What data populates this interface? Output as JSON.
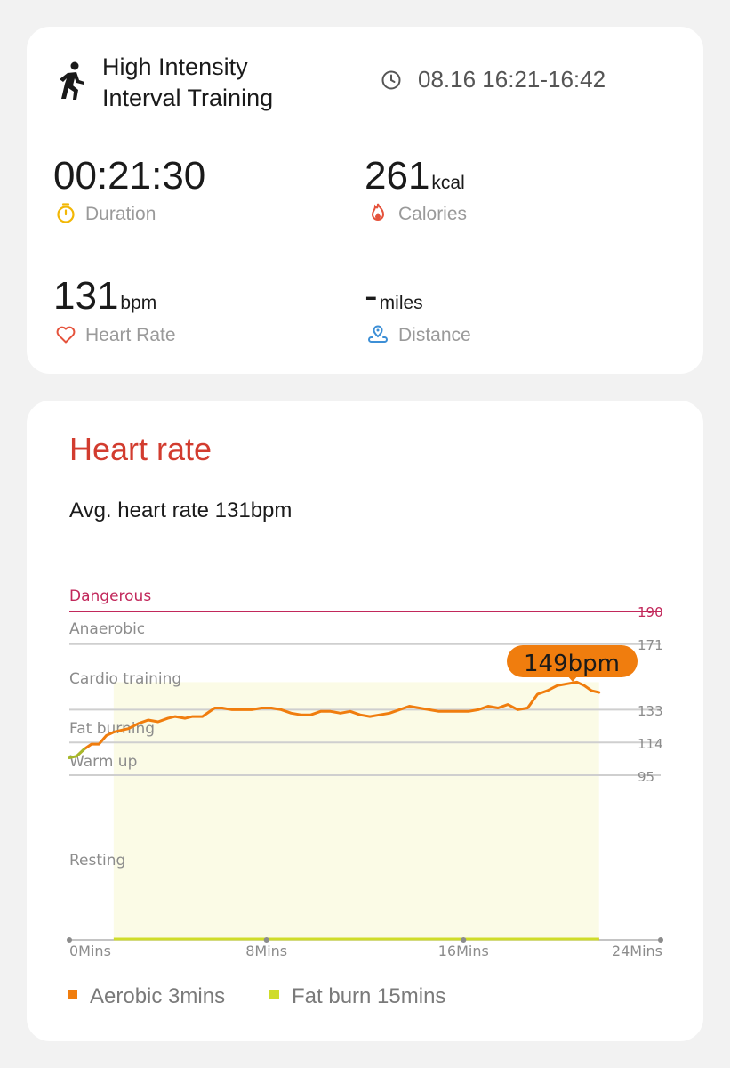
{
  "workout": {
    "title_line1": "High Intensity",
    "title_line2": "Interval Training",
    "time_range": "08.16 16:21-16:42",
    "icon": "running-person-icon"
  },
  "metrics": {
    "duration": {
      "value": "00:21:30",
      "label": "Duration",
      "icon": "stopwatch-icon",
      "color": "#f2b705"
    },
    "calories": {
      "value": "261",
      "unit": "kcal",
      "label": "Calories",
      "icon": "flame-icon",
      "color": "#e5533c"
    },
    "heart_rate": {
      "value": "131",
      "unit": "bpm",
      "label": "Heart Rate",
      "icon": "heart-icon",
      "color": "#e5533c"
    },
    "distance": {
      "value": "-",
      "unit": "miles",
      "label": "Distance",
      "icon": "route-pin-icon",
      "color": "#3d8fd6"
    }
  },
  "heart_rate_section": {
    "title": "Heart rate",
    "avg_text": "Avg. heart rate 131bpm",
    "max_callout": "149bpm"
  },
  "legend": {
    "aerobic": "Aerobic 3mins",
    "fat_burn": "Fat burn 15mins",
    "aerobic_color": "#f07d0e",
    "fat_burn_color": "#cfdc2a"
  },
  "chart_data": {
    "type": "line",
    "x_tick_labels": [
      "0Mins",
      "8Mins",
      "16Mins",
      "24Mins"
    ],
    "xlim": [
      0,
      24
    ],
    "y_ticks": [
      95,
      114,
      133,
      171,
      190
    ],
    "zones": [
      {
        "name": "Dangerous",
        "threshold": 190
      },
      {
        "name": "Anaerobic",
        "threshold": 171
      },
      {
        "name": "Cardio training",
        "threshold": null
      },
      {
        "name": "Fat burning",
        "threshold": 133
      },
      {
        "name": "Warm up",
        "threshold": 114
      },
      {
        "name": "Resting",
        "threshold": 95
      }
    ],
    "series": [
      {
        "x": [
          0,
          0.3,
          0.6,
          0.9,
          1.2,
          1.5,
          1.8,
          2.1,
          2.4,
          2.8,
          3.2,
          3.6,
          4.0,
          4.3,
          4.7,
          5.0,
          5.4,
          5.9,
          6.2,
          6.6,
          7.0,
          7.4,
          7.8,
          8.2,
          8.6,
          9.0,
          9.4,
          9.8,
          10.2,
          10.6,
          11.0,
          11.4,
          11.8,
          12.2,
          12.6,
          13.0,
          13.4,
          13.8,
          14.2,
          14.6,
          15.0,
          15.4,
          15.8,
          16.2,
          16.6,
          17.0,
          17.4,
          17.8,
          18.2,
          18.6,
          19.0,
          19.4,
          19.8,
          20.2,
          20.6,
          20.9,
          21.2,
          21.5
        ],
        "y": [
          105,
          106,
          110,
          113,
          113,
          118,
          120,
          121,
          122,
          125,
          127,
          126,
          128,
          129,
          128,
          129,
          129,
          134,
          134,
          133,
          133,
          133,
          134,
          134,
          133,
          131,
          130,
          130,
          132,
          132,
          131,
          132,
          130,
          129,
          130,
          131,
          133,
          135,
          134,
          133,
          132,
          132,
          132,
          132,
          133,
          135,
          134,
          136,
          133,
          134,
          142,
          144,
          147,
          148,
          149,
          147,
          144,
          143
        ]
      }
    ],
    "max_bpm": 149
  }
}
